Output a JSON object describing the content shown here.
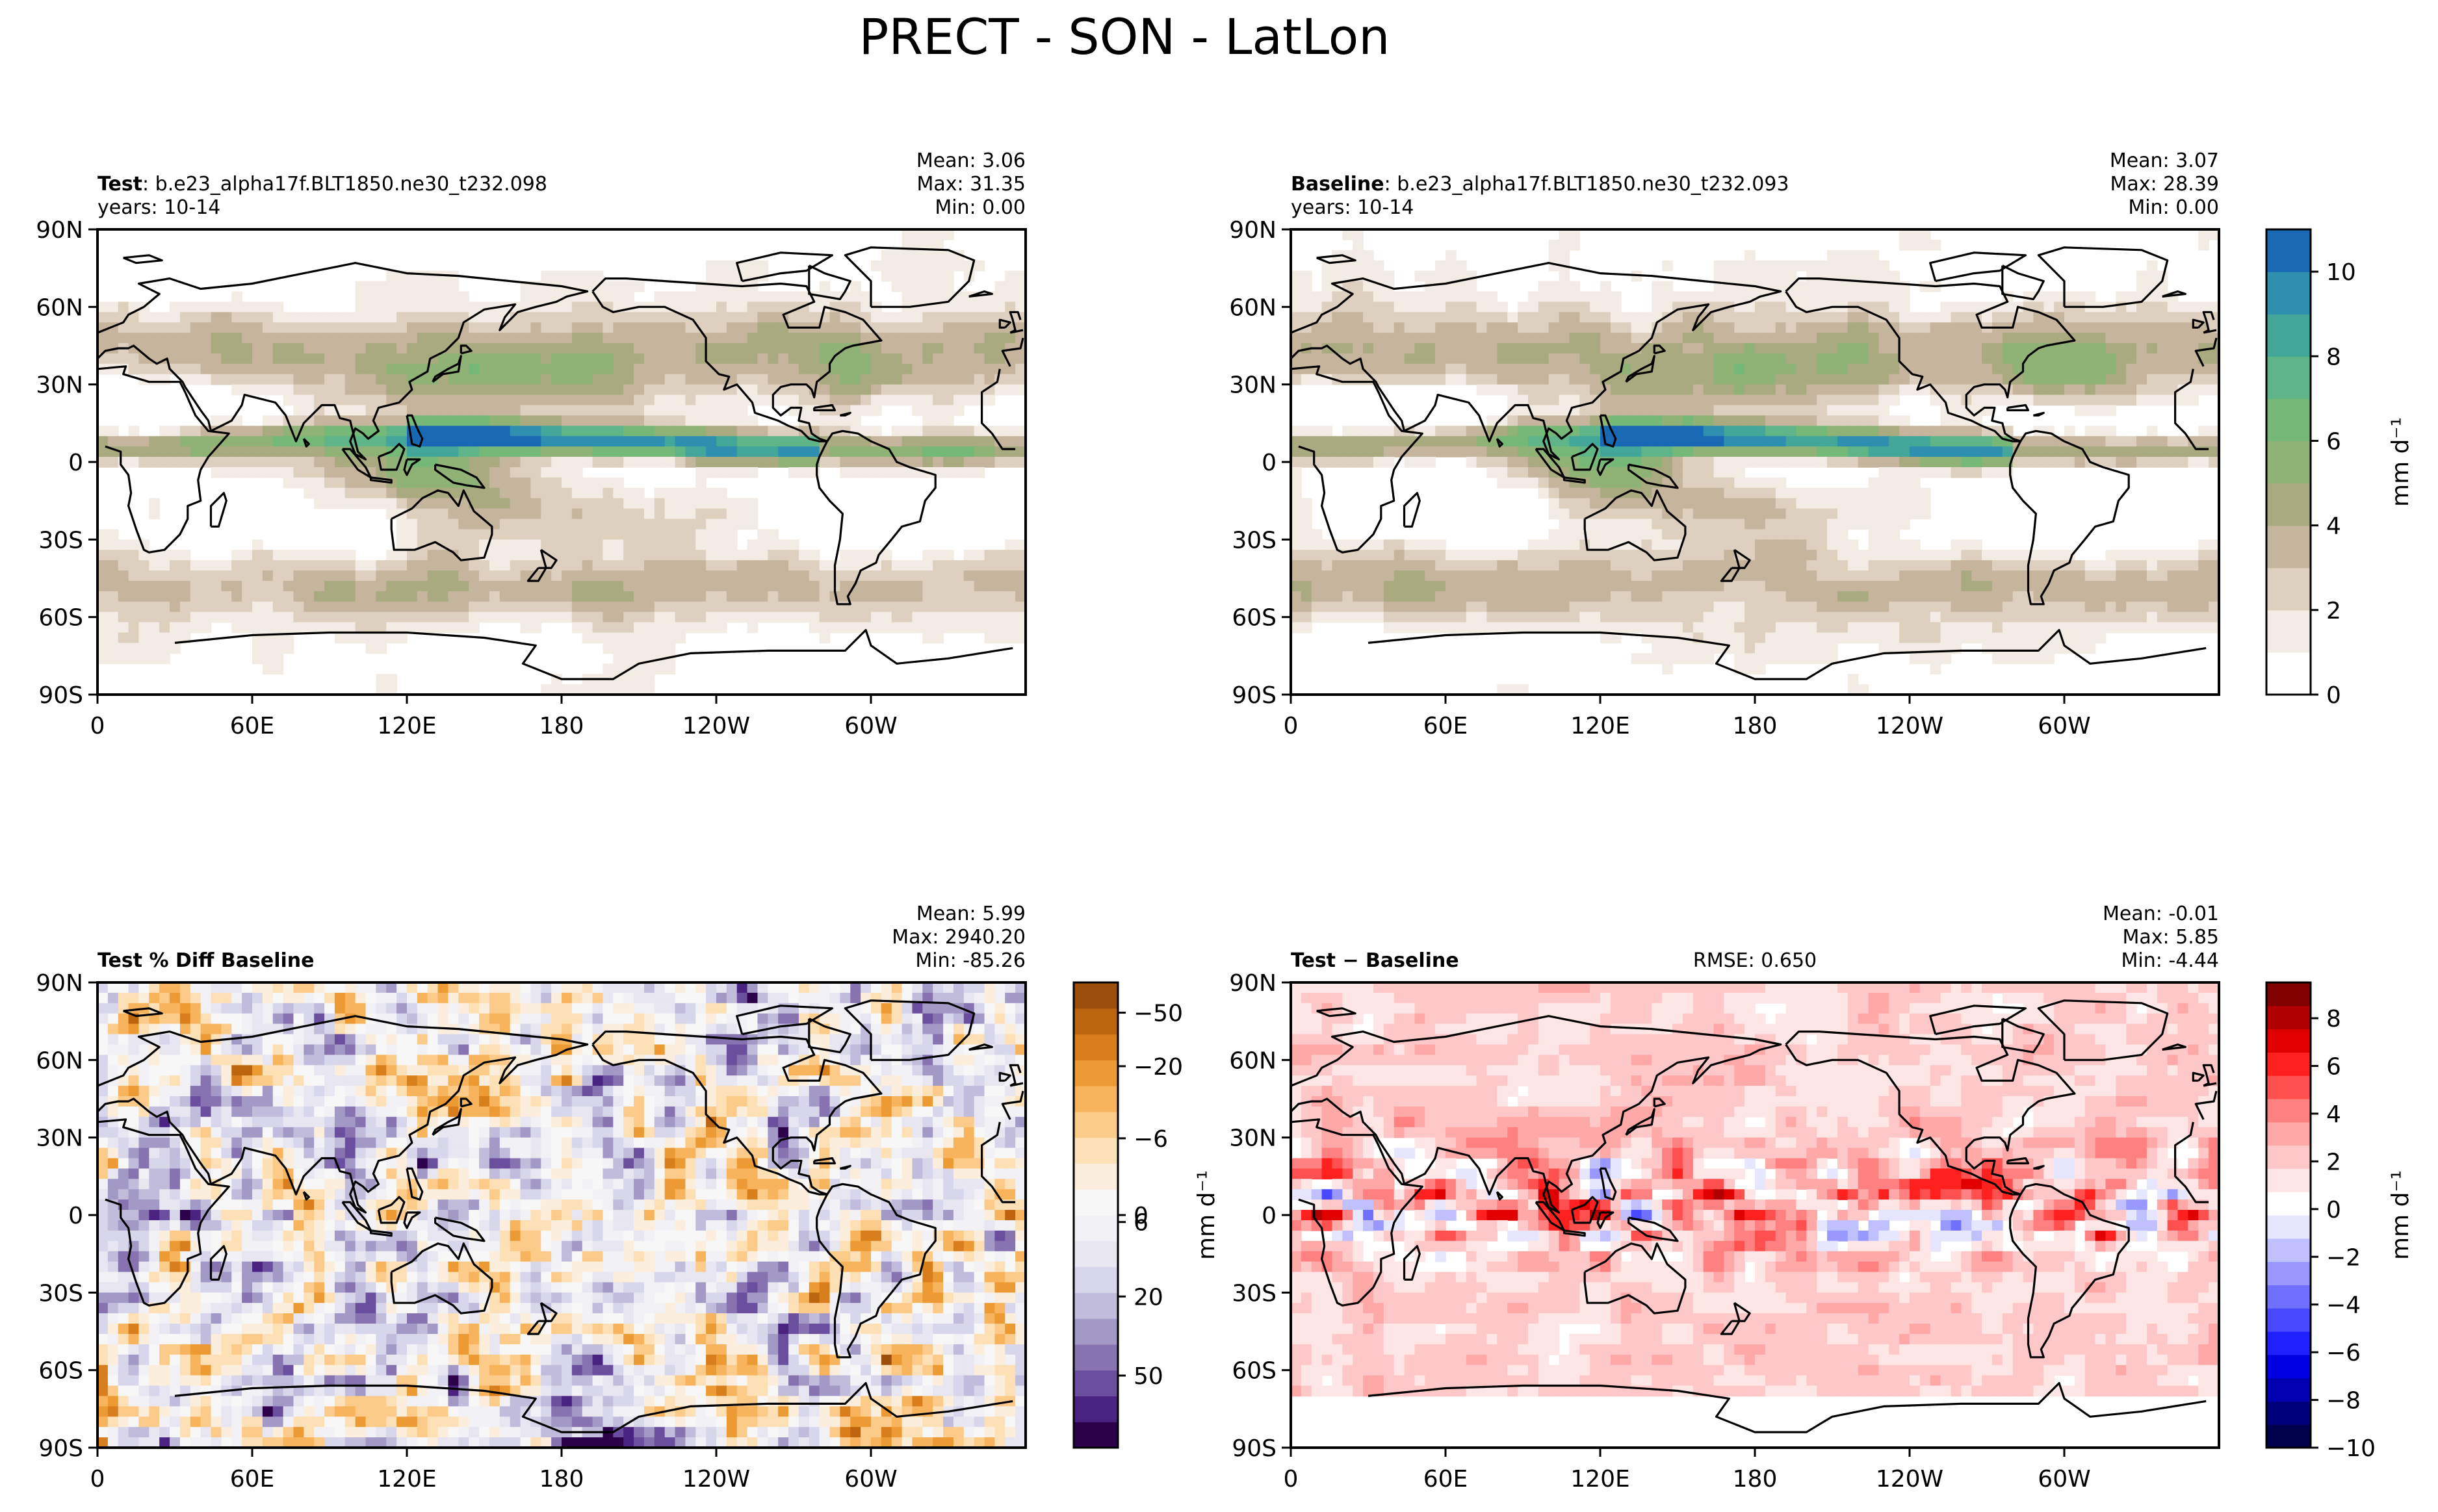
{
  "figure": {
    "title": "PRECT - SON - LatLon"
  },
  "chart_data": [
    {
      "id": "test",
      "type": "heatmap",
      "title_bold": "Test",
      "title_text": ": b.e23_alpha17f.BLT1850.ne30_t232.098",
      "subtitle": "years: 10-14",
      "stats": {
        "mean": "Mean:  3.06",
        "max": "Max: 31.35",
        "min": "Min:  0.00"
      },
      "x_ticks": [
        "0",
        "60E",
        "120E",
        "180",
        "120W",
        "60W"
      ],
      "y_ticks": [
        "90N",
        "60N",
        "30N",
        "0",
        "30S",
        "60S",
        "90S"
      ],
      "field": "precipitation",
      "variant": 0,
      "colorbar": null
    },
    {
      "id": "baseline",
      "type": "heatmap",
      "title_bold": "Baseline",
      "title_text": ": b.e23_alpha17f.BLT1850.ne30_t232.093",
      "subtitle": "years: 10-14",
      "stats": {
        "mean": "Mean:  3.07",
        "max": "Max: 28.39",
        "min": "Min:  0.00"
      },
      "x_ticks": [
        "0",
        "60E",
        "120E",
        "180",
        "120W",
        "60W"
      ],
      "y_ticks": [
        "90N",
        "60N",
        "30N",
        "0",
        "30S",
        "60S",
        "90S"
      ],
      "field": "precipitation",
      "variant": 1,
      "colorbar": {
        "label": "mm d⁻¹",
        "range": [
          0,
          11
        ],
        "ticks": [
          0,
          2,
          4,
          6,
          8,
          10
        ],
        "levels": [
          0,
          1,
          2,
          3,
          4,
          5,
          6,
          7,
          8,
          9,
          10,
          11
        ],
        "colors": [
          "#ffffff",
          "#f2ece4",
          "#ddd0bf",
          "#c6b59d",
          "#a9aa80",
          "#8fb277",
          "#76b877",
          "#5fb587",
          "#44a698",
          "#2e8fae",
          "#1968b4"
        ]
      }
    },
    {
      "id": "pctdiff",
      "type": "heatmap",
      "title_bold": "Test % Diff Baseline",
      "title_text": "",
      "subtitle": "",
      "stats": {
        "mean": "Mean:  5.99",
        "max": "Max: 2940.20",
        "min": "Min: -85.26"
      },
      "x_ticks": [
        "0",
        "60E",
        "120E",
        "180",
        "120W",
        "60W"
      ],
      "y_ticks": [
        "90N",
        "60N",
        "30N",
        "0",
        "30S",
        "60S",
        "90S"
      ],
      "field": "percent_difference",
      "variant": 2,
      "colorbar": {
        "label": "",
        "ticks": [
          "50",
          "20",
          "6",
          "0",
          "−6",
          "−20",
          "−50"
        ],
        "colors": [
          "#2d004b",
          "#4a2380",
          "#6a4f9e",
          "#8673b0",
          "#a399c6",
          "#c1bcdc",
          "#d8d6ea",
          "#e7e6f1",
          "#f2f1f5",
          "#f7f7f7",
          "#fbeedc",
          "#fde0b6",
          "#fdcb89",
          "#f8b45c",
          "#ec9a33",
          "#d97e1c",
          "#bd640f",
          "#9c4e0b"
        ]
      }
    },
    {
      "id": "diff",
      "type": "heatmap",
      "title_bold": "Test − Baseline",
      "title_text": "",
      "subtitle": "",
      "rmse": "RMSE: 0.650",
      "stats": {
        "mean": "Mean: -0.01",
        "max": "Max:  5.85",
        "min": "Min: -4.44"
      },
      "x_ticks": [
        "0",
        "60E",
        "120E",
        "180",
        "120W",
        "60W"
      ],
      "y_ticks": [
        "90N",
        "60N",
        "30N",
        "0",
        "30S",
        "60S",
        "90S"
      ],
      "field": "difference",
      "variant": 3,
      "left_label": "mm d⁻¹",
      "colorbar": {
        "label": "mm d⁻¹",
        "range": [
          -10,
          9.5
        ],
        "ticks": [
          8,
          6,
          4,
          2,
          0,
          -2,
          -4,
          -6,
          -8,
          -10
        ],
        "colors": [
          "#00004d",
          "#00007a",
          "#0000b0",
          "#0000e0",
          "#2020ff",
          "#4848ff",
          "#7070ff",
          "#9898ff",
          "#c0c0ff",
          "#e6e6ff",
          "#ffffff",
          "#ffe6e6",
          "#ffc8c8",
          "#ffa8a8",
          "#ff8080",
          "#ff5050",
          "#ff2020",
          "#e00000",
          "#b00000",
          "#800000"
        ]
      }
    }
  ]
}
